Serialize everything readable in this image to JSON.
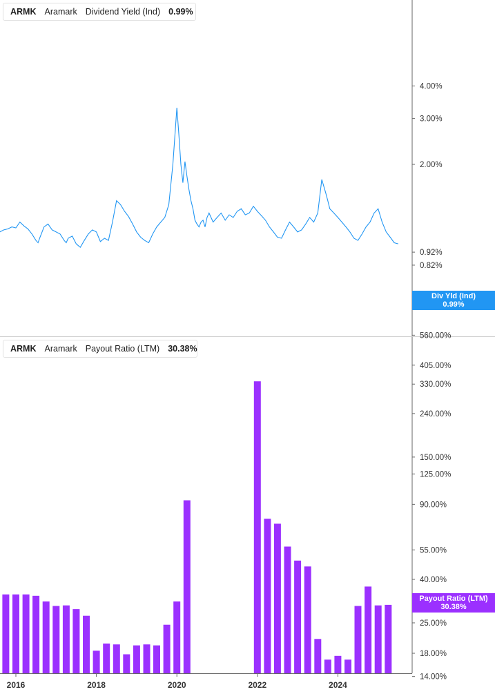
{
  "colors": {
    "div_yield": "#2196f3",
    "payout": "#9b30ff",
    "axis": "#666666",
    "divider": "#d0d0d0"
  },
  "panels": {
    "top": {
      "legend": {
        "ticker": "ARMK",
        "company": "Aramark",
        "metric": "Dividend Yield (Ind)",
        "value": "0.99%"
      },
      "flag": {
        "label": "Div Yld (Ind)",
        "value": "0.99%"
      }
    },
    "bottom": {
      "legend": {
        "ticker": "ARMK",
        "company": "Aramark",
        "metric": "Payout Ratio (LTM)",
        "value": "30.38%"
      },
      "flag": {
        "label": "Payout Ratio (LTM)",
        "value": "30.38%"
      }
    }
  },
  "chart_data": [
    {
      "type": "line",
      "series": [
        {
          "name": "Dividend Yield (Ind)",
          "x": [
            2015.6,
            2015.7,
            2015.8,
            2015.9,
            2016.0,
            2016.1,
            2016.2,
            2016.3,
            2016.4,
            2016.5,
            2016.55,
            2016.6,
            2016.7,
            2016.8,
            2016.9,
            2017.0,
            2017.1,
            2017.2,
            2017.25,
            2017.3,
            2017.4,
            2017.5,
            2017.6,
            2017.7,
            2017.8,
            2017.9,
            2018.0,
            2018.1,
            2018.2,
            2018.3,
            2018.4,
            2018.5,
            2018.6,
            2018.7,
            2018.8,
            2018.9,
            2019.0,
            2019.1,
            2019.2,
            2019.3,
            2019.4,
            2019.5,
            2019.6,
            2019.7,
            2019.8,
            2019.9,
            2020.0,
            2020.05,
            2020.1,
            2020.15,
            2020.2,
            2020.25,
            2020.3,
            2020.35,
            2020.4,
            2020.45,
            2020.5,
            2020.55,
            2020.6,
            2020.65,
            2020.7,
            2020.75,
            2020.8,
            2020.9,
            2021.0,
            2021.1,
            2021.2,
            2021.3,
            2021.4,
            2021.5,
            2021.6,
            2021.7,
            2021.8,
            2021.9,
            2022.0,
            2022.1,
            2022.2,
            2022.3,
            2022.4,
            2022.5,
            2022.6,
            2022.7,
            2022.8,
            2022.9,
            2023.0,
            2023.1,
            2023.2,
            2023.3,
            2023.4,
            2023.5,
            2023.6,
            2023.7,
            2023.75,
            2023.8,
            2023.9,
            2024.0,
            2024.1,
            2024.2,
            2024.3,
            2024.4,
            2024.5,
            2024.6,
            2024.7,
            2024.8,
            2024.9,
            2025.0,
            2025.1,
            2025.2,
            2025.3,
            2025.4,
            2025.5
          ],
          "values": [
            1.1,
            1.12,
            1.13,
            1.15,
            1.14,
            1.2,
            1.16,
            1.13,
            1.08,
            1.02,
            1.0,
            1.05,
            1.15,
            1.18,
            1.12,
            1.1,
            1.08,
            1.02,
            1.0,
            1.04,
            1.06,
            0.99,
            0.96,
            1.02,
            1.08,
            1.12,
            1.1,
            1.01,
            1.04,
            1.02,
            1.2,
            1.45,
            1.4,
            1.32,
            1.26,
            1.18,
            1.1,
            1.05,
            1.02,
            1.0,
            1.08,
            1.15,
            1.2,
            1.25,
            1.4,
            2.0,
            3.3,
            2.6,
            2.0,
            1.7,
            2.05,
            1.8,
            1.6,
            1.45,
            1.35,
            1.22,
            1.18,
            1.15,
            1.2,
            1.22,
            1.15,
            1.25,
            1.3,
            1.2,
            1.25,
            1.3,
            1.22,
            1.28,
            1.25,
            1.32,
            1.35,
            1.28,
            1.3,
            1.38,
            1.32,
            1.27,
            1.22,
            1.15,
            1.1,
            1.05,
            1.04,
            1.12,
            1.2,
            1.15,
            1.1,
            1.12,
            1.18,
            1.25,
            1.2,
            1.3,
            1.75,
            1.55,
            1.45,
            1.35,
            1.3,
            1.25,
            1.2,
            1.15,
            1.1,
            1.04,
            1.02,
            1.08,
            1.15,
            1.2,
            1.3,
            1.35,
            1.2,
            1.1,
            1.05,
            1.0,
            0.99
          ]
        }
      ],
      "yticks": [
        "4.00%",
        "3.00%",
        "2.00%",
        "0.92%",
        "0.82%"
      ],
      "ylim": [
        0.82,
        4.5
      ],
      "xlim": [
        2015.6,
        2025.8
      ],
      "yscale": "log",
      "grid": false
    },
    {
      "type": "bar",
      "series": [
        {
          "name": "Payout Ratio (LTM)",
          "x": [
            2015.75,
            2016.0,
            2016.25,
            2016.5,
            2016.75,
            2017.0,
            2017.25,
            2017.5,
            2017.75,
            2018.0,
            2018.25,
            2018.5,
            2018.75,
            2019.0,
            2019.25,
            2019.5,
            2019.75,
            2020.0,
            2020.25,
            2022.0,
            2022.25,
            2022.5,
            2022.75,
            2023.0,
            2023.25,
            2023.5,
            2023.75,
            2024.0,
            2024.25,
            2024.5,
            2024.75,
            2025.0,
            2025.25
          ],
          "values": [
            34,
            34,
            34,
            33.5,
            31.5,
            30,
            30.2,
            29,
            27,
            18.5,
            20,
            19.8,
            17.8,
            19.6,
            19.8,
            19.6,
            24.5,
            31.5,
            94,
            340,
            77,
            73,
            57,
            49,
            46,
            21,
            16.8,
            17.5,
            16.8,
            30,
            37,
            30.2,
            30.38
          ]
        }
      ],
      "xticks": [
        "2016",
        "2018",
        "2020",
        "2022",
        "2024"
      ],
      "yticks": [
        "560.00%",
        "405.00%",
        "330.00%",
        "240.00%",
        "150.00%",
        "125.00%",
        "90.00%",
        "55.00%",
        "40.00%",
        "25.00%",
        "18.00%",
        "14.00%"
      ],
      "ylim": [
        13.5,
        700
      ],
      "xlim": [
        2015.6,
        2025.8
      ],
      "yscale": "log"
    }
  ]
}
